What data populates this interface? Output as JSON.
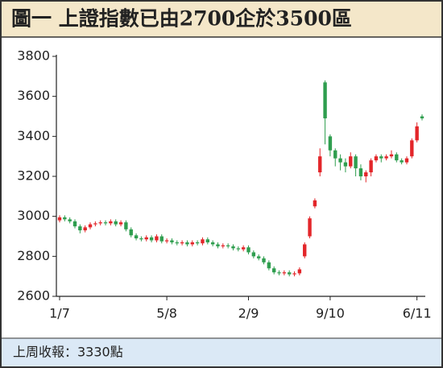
{
  "chart_data": {
    "type": "candlestick",
    "title": "圖一 上證指數已由2700企於3500區",
    "footer": "上周收報：3330點",
    "categories": [
      "1/7",
      null,
      null,
      null,
      null,
      null,
      null,
      null,
      null,
      null,
      null,
      null,
      null,
      null,
      null,
      null,
      null,
      null,
      null,
      null,
      null,
      "5/8",
      null,
      null,
      null,
      null,
      null,
      null,
      null,
      null,
      null,
      null,
      null,
      null,
      null,
      null,
      null,
      "2/9",
      null,
      null,
      null,
      null,
      null,
      null,
      null,
      null,
      null,
      null,
      null,
      null,
      null,
      null,
      null,
      "9/10",
      null,
      null,
      null,
      null,
      null,
      null,
      null,
      null,
      null,
      null,
      null,
      null,
      null,
      null,
      null,
      null,
      "6/11",
      null
    ],
    "open": [
      2980,
      2995,
      2985,
      2975,
      2950,
      2930,
      2945,
      2960,
      2965,
      2970,
      2965,
      2975,
      2960,
      2970,
      2935,
      2905,
      2890,
      2885,
      2895,
      2880,
      2900,
      2875,
      2880,
      2870,
      2865,
      2870,
      2860,
      2870,
      2865,
      2885,
      2870,
      2860,
      2850,
      2855,
      2850,
      2840,
      2835,
      2845,
      2820,
      2800,
      2790,
      2770,
      2740,
      2720,
      2715,
      2720,
      2710,
      2715,
      2800,
      2900,
      3050,
      3220,
      3670,
      3400,
      3330,
      3290,
      3270,
      3250,
      3300,
      3240,
      3200,
      3220,
      3280,
      3300,
      3290,
      3300,
      3310,
      3280,
      3270,
      3300,
      3380,
      3500
    ],
    "high": [
      3005,
      3005,
      2995,
      2985,
      2960,
      2955,
      2970,
      2975,
      2980,
      2980,
      2985,
      2985,
      2980,
      2980,
      2945,
      2915,
      2900,
      2905,
      2905,
      2910,
      2910,
      2890,
      2890,
      2880,
      2880,
      2880,
      2880,
      2880,
      2895,
      2895,
      2880,
      2870,
      2865,
      2865,
      2860,
      2850,
      2855,
      2855,
      2830,
      2810,
      2800,
      2780,
      2750,
      2730,
      2730,
      2730,
      2725,
      2745,
      2870,
      3000,
      3090,
      3340,
      3680,
      3410,
      3340,
      3310,
      3290,
      3320,
      3310,
      3260,
      3230,
      3290,
      3310,
      3310,
      3310,
      3330,
      3320,
      3290,
      3300,
      3390,
      3470,
      3510
    ],
    "low": [
      2970,
      2975,
      2965,
      2940,
      2915,
      2920,
      2935,
      2950,
      2955,
      2955,
      2955,
      2950,
      2950,
      2925,
      2895,
      2880,
      2875,
      2875,
      2870,
      2870,
      2865,
      2865,
      2860,
      2855,
      2855,
      2850,
      2850,
      2855,
      2855,
      2860,
      2850,
      2840,
      2840,
      2840,
      2830,
      2825,
      2825,
      2810,
      2790,
      2780,
      2760,
      2730,
      2710,
      2705,
      2705,
      2700,
      2700,
      2705,
      2790,
      2890,
      3040,
      3200,
      3360,
      3300,
      3250,
      3230,
      3220,
      3240,
      3200,
      3180,
      3170,
      3200,
      3270,
      3270,
      3280,
      3290,
      3270,
      3260,
      3260,
      3290,
      3370,
      3480
    ],
    "close": [
      2995,
      2985,
      2975,
      2950,
      2930,
      2945,
      2960,
      2965,
      2970,
      2965,
      2975,
      2960,
      2970,
      2935,
      2905,
      2890,
      2885,
      2895,
      2880,
      2900,
      2875,
      2880,
      2870,
      2865,
      2870,
      2860,
      2870,
      2865,
      2885,
      2870,
      2860,
      2850,
      2855,
      2850,
      2840,
      2835,
      2845,
      2820,
      2800,
      2790,
      2770,
      2740,
      2720,
      2715,
      2720,
      2710,
      2715,
      2735,
      2860,
      2990,
      3080,
      3300,
      3490,
      3330,
      3290,
      3270,
      3250,
      3300,
      3240,
      3200,
      3220,
      3280,
      3300,
      3290,
      3300,
      3310,
      3280,
      3270,
      3290,
      3380,
      3450,
      3490
    ],
    "up_color": "#e3262a",
    "down_color": "#2f9e4f",
    "ylim": [
      2600,
      3800
    ],
    "yticks": [
      2600,
      2800,
      3000,
      3200,
      3400,
      3600,
      3800
    ],
    "grid": false
  }
}
